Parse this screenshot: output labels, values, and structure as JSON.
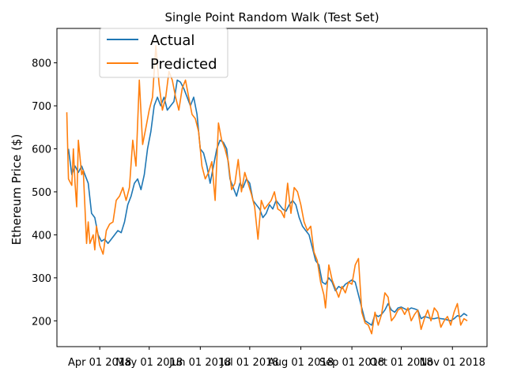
{
  "chart_data": {
    "type": "line",
    "title": "Single Point Random Walk (Test Set)",
    "xlabel": "",
    "ylabel": "Ethereum Price ($)",
    "x_ticks": [
      "Apr 01 2018",
      "May 01 2018",
      "Jun 01 2018",
      "Jul 01 2018",
      "Aug 01 2018",
      "Sep 01 2018",
      "Oct 01 2018",
      "Nov 01 2018"
    ],
    "y_ticks": [
      200,
      300,
      400,
      500,
      600,
      700,
      800
    ],
    "xlim": [
      "2018-03-06",
      "2018-11-22"
    ],
    "ylim": [
      140,
      880
    ],
    "legend": {
      "position": "upper-left"
    },
    "grid": false,
    "colors": {
      "Actual": "#1f77b4",
      "Predicted": "#ff7f0e"
    },
    "series": [
      {
        "name": "Actual",
        "points": [
          [
            "2018-03-13",
            600
          ],
          [
            "2018-03-15",
            540
          ],
          [
            "2018-03-17",
            560
          ],
          [
            "2018-03-19",
            545
          ],
          [
            "2018-03-21",
            560
          ],
          [
            "2018-03-23",
            540
          ],
          [
            "2018-03-25",
            520
          ],
          [
            "2018-03-27",
            450
          ],
          [
            "2018-03-29",
            440
          ],
          [
            "2018-03-31",
            400
          ],
          [
            "2018-04-02",
            385
          ],
          [
            "2018-04-04",
            390
          ],
          [
            "2018-04-06",
            380
          ],
          [
            "2018-04-08",
            390
          ],
          [
            "2018-04-10",
            400
          ],
          [
            "2018-04-12",
            410
          ],
          [
            "2018-04-14",
            405
          ],
          [
            "2018-04-16",
            430
          ],
          [
            "2018-04-18",
            470
          ],
          [
            "2018-04-20",
            490
          ],
          [
            "2018-04-22",
            520
          ],
          [
            "2018-04-24",
            530
          ],
          [
            "2018-04-26",
            505
          ],
          [
            "2018-04-28",
            540
          ],
          [
            "2018-04-30",
            600
          ],
          [
            "2018-05-02",
            640
          ],
          [
            "2018-05-04",
            700
          ],
          [
            "2018-05-06",
            720
          ],
          [
            "2018-05-08",
            700
          ],
          [
            "2018-05-10",
            720
          ],
          [
            "2018-05-12",
            690
          ],
          [
            "2018-05-14",
            700
          ],
          [
            "2018-05-16",
            710
          ],
          [
            "2018-05-18",
            760
          ],
          [
            "2018-05-20",
            755
          ],
          [
            "2018-05-22",
            740
          ],
          [
            "2018-05-24",
            720
          ],
          [
            "2018-05-26",
            700
          ],
          [
            "2018-05-28",
            720
          ],
          [
            "2018-05-30",
            680
          ],
          [
            "2018-06-01",
            600
          ],
          [
            "2018-06-03",
            590
          ],
          [
            "2018-06-05",
            560
          ],
          [
            "2018-06-07",
            520
          ],
          [
            "2018-06-09",
            560
          ],
          [
            "2018-06-11",
            600
          ],
          [
            "2018-06-13",
            620
          ],
          [
            "2018-06-15",
            615
          ],
          [
            "2018-06-17",
            600
          ],
          [
            "2018-06-19",
            530
          ],
          [
            "2018-06-21",
            510
          ],
          [
            "2018-06-23",
            490
          ],
          [
            "2018-06-25",
            520
          ],
          [
            "2018-06-27",
            510
          ],
          [
            "2018-06-29",
            530
          ],
          [
            "2018-07-01",
            520
          ],
          [
            "2018-07-03",
            480
          ],
          [
            "2018-07-05",
            470
          ],
          [
            "2018-07-07",
            460
          ],
          [
            "2018-07-09",
            440
          ],
          [
            "2018-07-11",
            450
          ],
          [
            "2018-07-13",
            470
          ],
          [
            "2018-07-15",
            460
          ],
          [
            "2018-07-17",
            480
          ],
          [
            "2018-07-19",
            470
          ],
          [
            "2018-07-21",
            460
          ],
          [
            "2018-07-23",
            455
          ],
          [
            "2018-07-25",
            470
          ],
          [
            "2018-07-27",
            480
          ],
          [
            "2018-07-29",
            470
          ],
          [
            "2018-07-31",
            440
          ],
          [
            "2018-08-02",
            420
          ],
          [
            "2018-08-04",
            410
          ],
          [
            "2018-08-06",
            400
          ],
          [
            "2018-08-08",
            370
          ],
          [
            "2018-08-10",
            340
          ],
          [
            "2018-08-12",
            330
          ],
          [
            "2018-08-14",
            290
          ],
          [
            "2018-08-16",
            285
          ],
          [
            "2018-08-18",
            300
          ],
          [
            "2018-08-20",
            290
          ],
          [
            "2018-08-22",
            270
          ],
          [
            "2018-08-24",
            280
          ],
          [
            "2018-08-26",
            275
          ],
          [
            "2018-08-28",
            285
          ],
          [
            "2018-08-30",
            290
          ],
          [
            "2018-09-01",
            295
          ],
          [
            "2018-09-03",
            290
          ],
          [
            "2018-09-05",
            260
          ],
          [
            "2018-09-07",
            230
          ],
          [
            "2018-09-09",
            200
          ],
          [
            "2018-09-11",
            195
          ],
          [
            "2018-09-13",
            190
          ],
          [
            "2018-09-15",
            215
          ],
          [
            "2018-09-17",
            210
          ],
          [
            "2018-09-19",
            215
          ],
          [
            "2018-09-21",
            225
          ],
          [
            "2018-09-23",
            240
          ],
          [
            "2018-09-25",
            225
          ],
          [
            "2018-09-27",
            220
          ],
          [
            "2018-09-29",
            230
          ],
          [
            "2018-10-01",
            232
          ],
          [
            "2018-10-03",
            228
          ],
          [
            "2018-10-05",
            225
          ],
          [
            "2018-10-07",
            230
          ],
          [
            "2018-10-09",
            228
          ],
          [
            "2018-10-11",
            225
          ],
          [
            "2018-10-13",
            205
          ],
          [
            "2018-10-15",
            210
          ],
          [
            "2018-10-17",
            208
          ],
          [
            "2018-10-19",
            205
          ],
          [
            "2018-10-21",
            205
          ],
          [
            "2018-10-23",
            207
          ],
          [
            "2018-10-25",
            205
          ],
          [
            "2018-10-27",
            204
          ],
          [
            "2018-10-29",
            202
          ],
          [
            "2018-10-31",
            200
          ],
          [
            "2018-11-02",
            205
          ],
          [
            "2018-11-04",
            212
          ],
          [
            "2018-11-06",
            210
          ],
          [
            "2018-11-08",
            217
          ],
          [
            "2018-11-10",
            212
          ]
        ]
      },
      {
        "name": "Predicted",
        "points": [
          [
            "2018-03-12",
            685
          ],
          [
            "2018-03-13",
            530
          ],
          [
            "2018-03-15",
            515
          ],
          [
            "2018-03-16",
            600
          ],
          [
            "2018-03-17",
            520
          ],
          [
            "2018-03-18",
            465
          ],
          [
            "2018-03-19",
            620
          ],
          [
            "2018-03-21",
            540
          ],
          [
            "2018-03-22",
            550
          ],
          [
            "2018-03-24",
            380
          ],
          [
            "2018-03-25",
            430
          ],
          [
            "2018-03-26",
            380
          ],
          [
            "2018-03-28",
            400
          ],
          [
            "2018-03-29",
            365
          ],
          [
            "2018-03-30",
            420
          ],
          [
            "2018-04-01",
            375
          ],
          [
            "2018-04-03",
            355
          ],
          [
            "2018-04-05",
            410
          ],
          [
            "2018-04-07",
            425
          ],
          [
            "2018-04-09",
            430
          ],
          [
            "2018-04-11",
            480
          ],
          [
            "2018-04-13",
            490
          ],
          [
            "2018-04-15",
            510
          ],
          [
            "2018-04-17",
            480
          ],
          [
            "2018-04-19",
            510
          ],
          [
            "2018-04-21",
            620
          ],
          [
            "2018-04-23",
            560
          ],
          [
            "2018-04-25",
            760
          ],
          [
            "2018-04-27",
            610
          ],
          [
            "2018-04-29",
            650
          ],
          [
            "2018-05-01",
            690
          ],
          [
            "2018-05-03",
            720
          ],
          [
            "2018-05-05",
            840
          ],
          [
            "2018-05-07",
            750
          ],
          [
            "2018-05-09",
            690
          ],
          [
            "2018-05-11",
            720
          ],
          [
            "2018-05-13",
            780
          ],
          [
            "2018-05-15",
            760
          ],
          [
            "2018-05-17",
            720
          ],
          [
            "2018-05-19",
            690
          ],
          [
            "2018-05-21",
            740
          ],
          [
            "2018-05-23",
            760
          ],
          [
            "2018-05-25",
            720
          ],
          [
            "2018-05-27",
            680
          ],
          [
            "2018-05-29",
            670
          ],
          [
            "2018-05-31",
            640
          ],
          [
            "2018-06-02",
            560
          ],
          [
            "2018-06-04",
            530
          ],
          [
            "2018-06-06",
            545
          ],
          [
            "2018-06-08",
            570
          ],
          [
            "2018-06-10",
            480
          ],
          [
            "2018-06-12",
            660
          ],
          [
            "2018-06-14",
            620
          ],
          [
            "2018-06-16",
            600
          ],
          [
            "2018-06-18",
            570
          ],
          [
            "2018-06-20",
            505
          ],
          [
            "2018-06-22",
            520
          ],
          [
            "2018-06-24",
            575
          ],
          [
            "2018-06-26",
            500
          ],
          [
            "2018-06-28",
            545
          ],
          [
            "2018-06-30",
            520
          ],
          [
            "2018-07-02",
            495
          ],
          [
            "2018-07-04",
            465
          ],
          [
            "2018-07-06",
            390
          ],
          [
            "2018-07-08",
            480
          ],
          [
            "2018-07-10",
            460
          ],
          [
            "2018-07-12",
            470
          ],
          [
            "2018-07-14",
            480
          ],
          [
            "2018-07-16",
            500
          ],
          [
            "2018-07-18",
            460
          ],
          [
            "2018-07-20",
            455
          ],
          [
            "2018-07-22",
            440
          ],
          [
            "2018-07-24",
            520
          ],
          [
            "2018-07-26",
            450
          ],
          [
            "2018-07-28",
            510
          ],
          [
            "2018-07-30",
            500
          ],
          [
            "2018-08-01",
            470
          ],
          [
            "2018-08-03",
            430
          ],
          [
            "2018-08-05",
            410
          ],
          [
            "2018-08-07",
            420
          ],
          [
            "2018-08-09",
            360
          ],
          [
            "2018-08-11",
            340
          ],
          [
            "2018-08-13",
            290
          ],
          [
            "2018-08-15",
            260
          ],
          [
            "2018-08-16",
            230
          ],
          [
            "2018-08-18",
            330
          ],
          [
            "2018-08-20",
            295
          ],
          [
            "2018-08-22",
            275
          ],
          [
            "2018-08-24",
            255
          ],
          [
            "2018-08-26",
            280
          ],
          [
            "2018-08-28",
            265
          ],
          [
            "2018-08-30",
            290
          ],
          [
            "2018-09-01",
            285
          ],
          [
            "2018-09-03",
            330
          ],
          [
            "2018-09-05",
            345
          ],
          [
            "2018-09-07",
            220
          ],
          [
            "2018-09-09",
            195
          ],
          [
            "2018-09-11",
            190
          ],
          [
            "2018-09-13",
            170
          ],
          [
            "2018-09-15",
            220
          ],
          [
            "2018-09-17",
            190
          ],
          [
            "2018-09-19",
            215
          ],
          [
            "2018-09-21",
            265
          ],
          [
            "2018-09-23",
            255
          ],
          [
            "2018-09-25",
            200
          ],
          [
            "2018-09-27",
            210
          ],
          [
            "2018-09-29",
            225
          ],
          [
            "2018-10-01",
            230
          ],
          [
            "2018-10-03",
            215
          ],
          [
            "2018-10-05",
            230
          ],
          [
            "2018-10-07",
            200
          ],
          [
            "2018-10-09",
            215
          ],
          [
            "2018-10-11",
            225
          ],
          [
            "2018-10-13",
            180
          ],
          [
            "2018-10-15",
            205
          ],
          [
            "2018-10-17",
            225
          ],
          [
            "2018-10-19",
            200
          ],
          [
            "2018-10-21",
            230
          ],
          [
            "2018-10-23",
            220
          ],
          [
            "2018-10-25",
            185
          ],
          [
            "2018-10-27",
            200
          ],
          [
            "2018-10-29",
            210
          ],
          [
            "2018-10-31",
            190
          ],
          [
            "2018-11-02",
            220
          ],
          [
            "2018-11-04",
            240
          ],
          [
            "2018-11-06",
            190
          ],
          [
            "2018-11-08",
            205
          ],
          [
            "2018-11-10",
            200
          ]
        ]
      }
    ]
  }
}
